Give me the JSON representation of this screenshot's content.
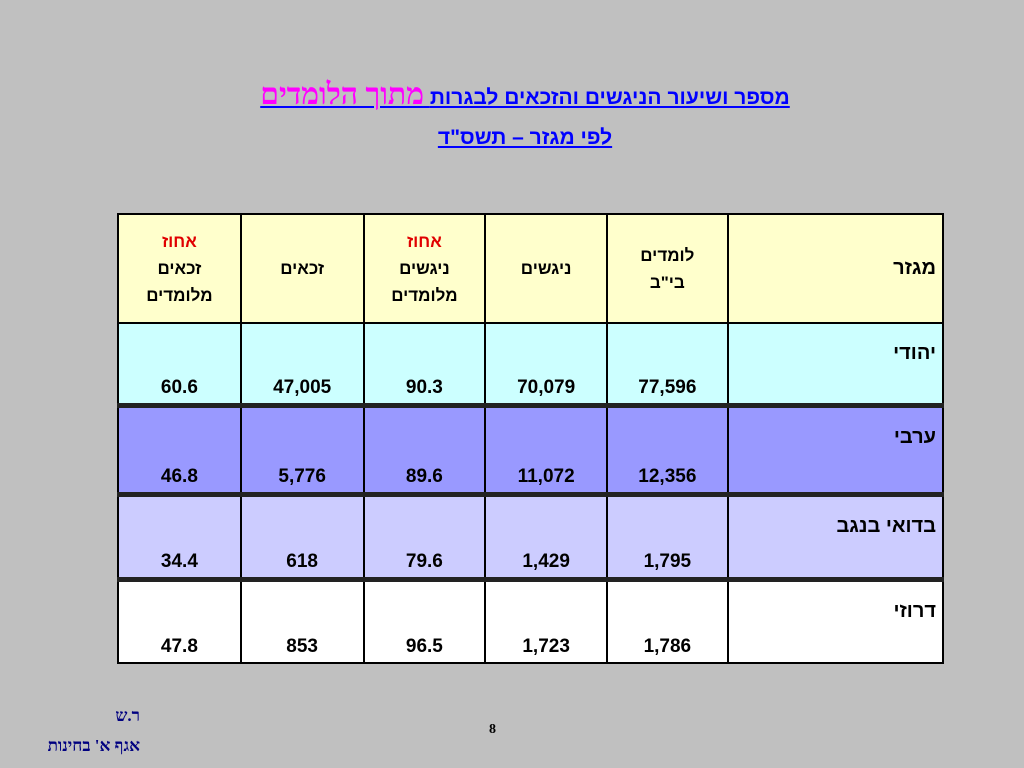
{
  "header": {
    "title_line1_main": "מספר ושיעור הניגשים והזכאים לבגרות",
    "title_line1_emphasis": "מתוך הלומדים",
    "title_line2": "לפי מגזר – תשס\"ד"
  },
  "table": {
    "columns": [
      [
        "מגזר"
      ],
      [
        "לומדים",
        "בי\"ב"
      ],
      [
        "ניגשים"
      ],
      [
        "אחוז",
        "ניגשים",
        "מלומדים"
      ],
      [
        "זכאים"
      ],
      [
        "אחוז",
        "זכאים",
        "מלומדים"
      ]
    ],
    "rows": [
      [
        "יהודי",
        "77,596",
        "70,079",
        "90.3",
        "47,005",
        "60.6"
      ],
      [
        "ערבי",
        "12,356",
        "11,072",
        "89.6",
        "5,776",
        "46.8"
      ],
      [
        "בדואי בנגב",
        "1,795",
        "1,429",
        "79.6",
        "618",
        "34.4"
      ],
      [
        "דרוזי",
        "1,786",
        "1,723",
        "96.5",
        "853",
        "47.8"
      ]
    ]
  },
  "footer": {
    "author": "ר.ש",
    "department": "אגף א' בחינות",
    "page_number": "8"
  }
}
